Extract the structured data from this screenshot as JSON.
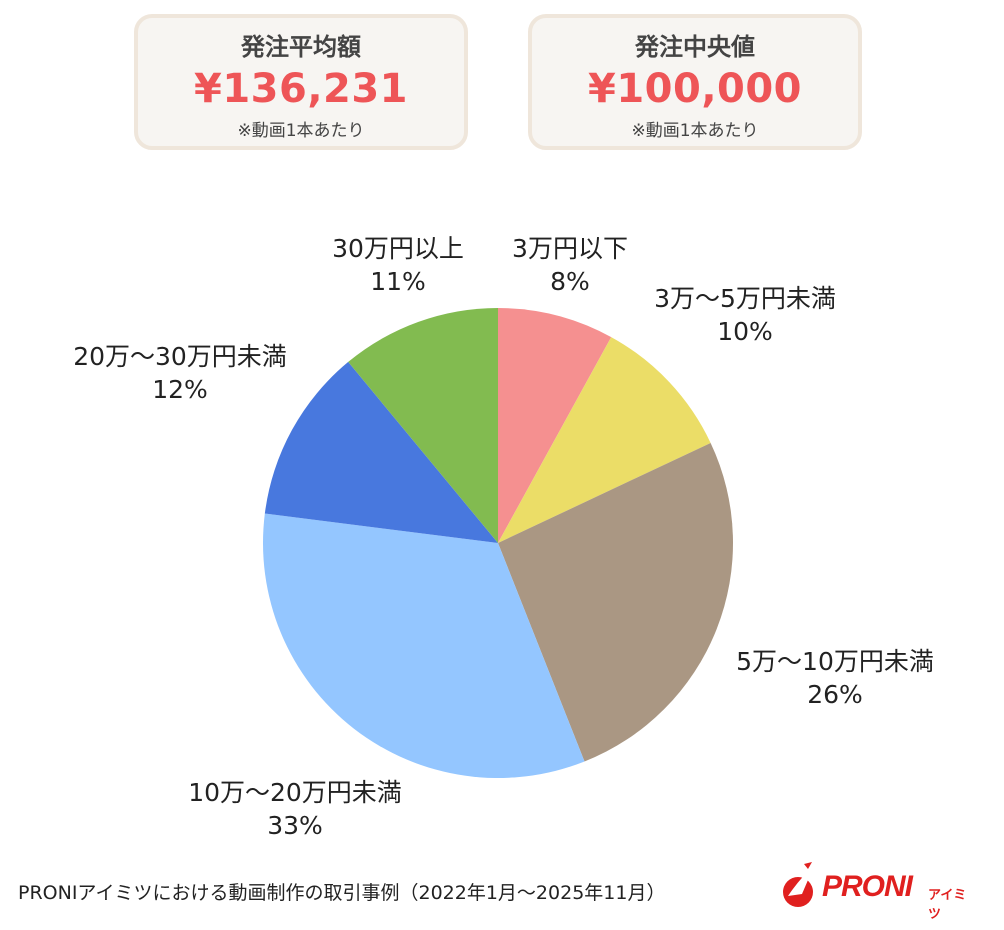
{
  "summary": {
    "average": {
      "title": "発注平均額",
      "value": "¥136,231",
      "note": "※動画1本あたり"
    },
    "median": {
      "title": "発注中央値",
      "value": "¥100,000",
      "note": "※動画1本あたり"
    }
  },
  "chart_data": {
    "type": "pie",
    "start_angle_deg": 0,
    "direction": "clockwise",
    "slices": [
      {
        "label": "3万円以下",
        "value": 8,
        "pct_label": "8%",
        "color": "#f59090"
      },
      {
        "label": "3万～5万円未満",
        "value": 10,
        "pct_label": "10%",
        "color": "#ebdd67"
      },
      {
        "label": "5万～10万円未満",
        "value": 26,
        "pct_label": "26%",
        "color": "#aa9783"
      },
      {
        "label": "10万～20万円未満",
        "value": 33,
        "pct_label": "33%",
        "color": "#94c6ff"
      },
      {
        "label": "20万～30万円未満",
        "value": 12,
        "pct_label": "12%",
        "color": "#4878de"
      },
      {
        "label": "30万円以上",
        "value": 11,
        "pct_label": "11%",
        "color": "#82bb50"
      }
    ]
  },
  "footer": {
    "caption": "PRONIアイミツにおける動画制作の取引事例（2022年1月～2025年11月）"
  },
  "logo": {
    "main": "PRONI",
    "sub": "アイミツ",
    "color": "#e0201f"
  }
}
